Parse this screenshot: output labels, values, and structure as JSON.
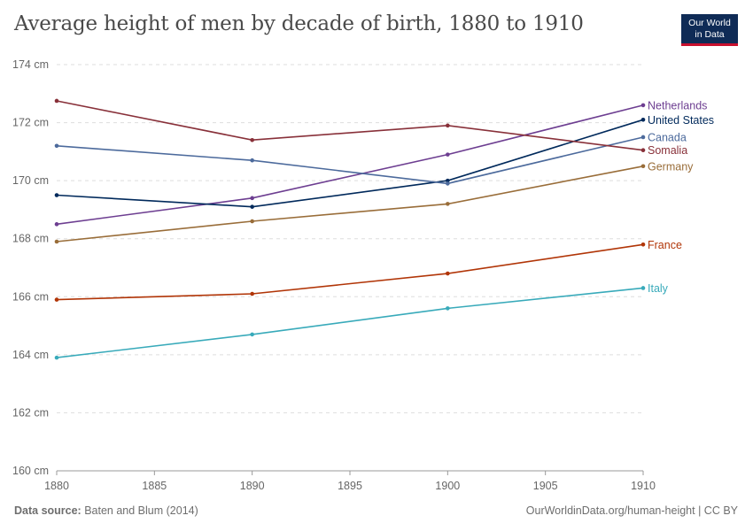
{
  "header": {
    "title": "Average height of men by decade of birth, 1880 to 1910",
    "logo_line1": "Our World",
    "logo_line2": "in Data"
  },
  "footer": {
    "source_label": "Data source:",
    "source_text": "Baten and Blum (2014)",
    "url": "OurWorldinData.org/human-height | CC BY"
  },
  "chart_data": {
    "type": "line",
    "title": "Average height of men by decade of birth, 1880 to 1910",
    "x": [
      1880,
      1890,
      1900,
      1910
    ],
    "xlim": [
      1880,
      1910
    ],
    "ylim": [
      160,
      174
    ],
    "y_unit": " cm",
    "x_ticks": [
      1880,
      1885,
      1890,
      1895,
      1900,
      1905,
      1910
    ],
    "y_ticks": [
      160,
      162,
      164,
      166,
      168,
      170,
      172,
      174
    ],
    "grid": "horizontal dashed",
    "legend": "direct labels at right end of lines",
    "series": [
      {
        "name": "Netherlands",
        "color": "#6d3e91",
        "values": [
          168.5,
          169.4,
          170.9,
          172.6
        ]
      },
      {
        "name": "United States",
        "color": "#00295b",
        "values": [
          169.5,
          169.1,
          170.0,
          172.1
        ]
      },
      {
        "name": "Canada",
        "color": "#4c6a9c",
        "values": [
          171.2,
          170.7,
          169.9,
          171.5
        ]
      },
      {
        "name": "Somalia",
        "color": "#883039",
        "values": [
          172.75,
          171.4,
          171.9,
          171.05
        ]
      },
      {
        "name": "Germany",
        "color": "#996d39",
        "values": [
          167.9,
          168.6,
          169.2,
          170.5
        ]
      },
      {
        "name": "France",
        "color": "#b13507",
        "values": [
          165.9,
          166.1,
          166.8,
          167.8
        ]
      },
      {
        "name": "Italy",
        "color": "#38aaba",
        "values": [
          163.9,
          164.7,
          165.6,
          166.3
        ]
      }
    ]
  }
}
